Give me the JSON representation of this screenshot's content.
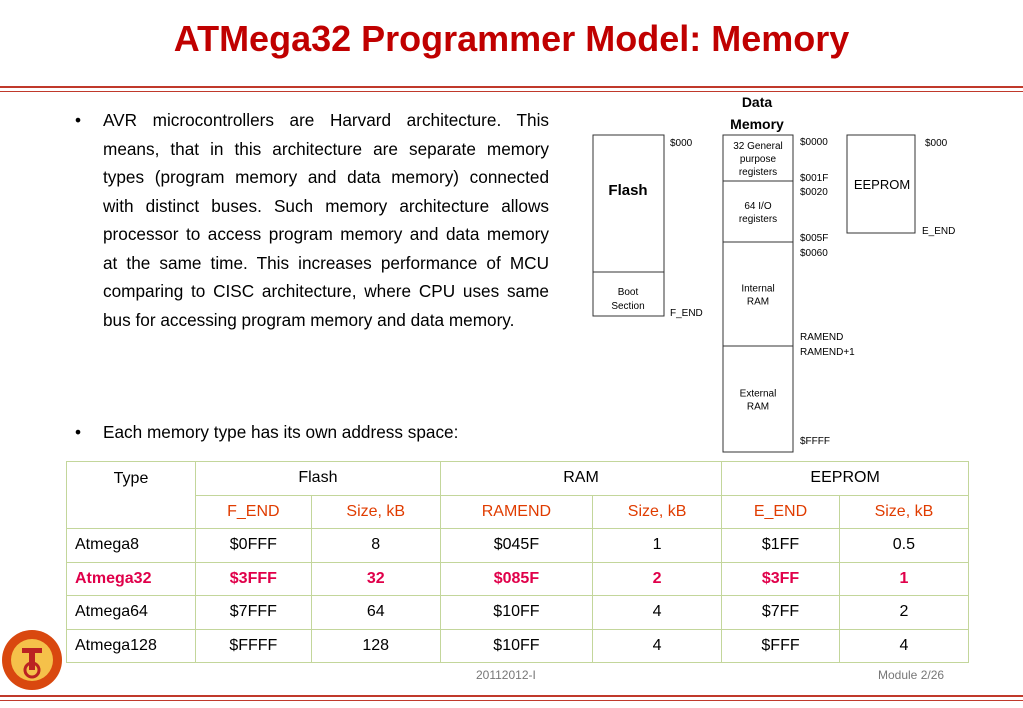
{
  "title": "ATMega32 Programmer Model: Memory",
  "bullets": [
    "AVR microcontrollers are Harvard architecture. This means, that in this architecture are separate memory types (program memory and data memory) connected with distinct buses. Such memory architecture allows processor to access program memory and data memory at the same time. This increases performance of MCU comparing to CISC architecture, where CPU uses same bus for accessing program memory and data memory.",
    "Each memory type has its own address space:"
  ],
  "diagram": {
    "data_memory_heading": [
      "Data",
      "Memory"
    ],
    "flash": {
      "label": "Flash",
      "boot": [
        "Boot",
        "Section"
      ],
      "start": "$000",
      "end": "F_END"
    },
    "data": {
      "blocks": [
        [
          "32 General",
          "purpose",
          "registers"
        ],
        [
          "64 I/O",
          "registers"
        ],
        [
          "Internal",
          "RAM"
        ],
        [
          "External",
          "RAM"
        ]
      ],
      "addresses": [
        "$0000",
        "$001F",
        "$0020",
        "$005F",
        "$0060",
        "RAMEND",
        "RAMEND+1",
        "$FFFF"
      ]
    },
    "eeprom": {
      "label": "EEPROM",
      "start": "$000",
      "end": "E_END"
    }
  },
  "table": {
    "header": [
      "Type",
      "Flash",
      "RAM",
      "EEPROM"
    ],
    "subheader": [
      "F_END",
      "Size, kB",
      "RAMEND",
      "Size, kB",
      "E_END",
      "Size, kB"
    ],
    "rows": [
      [
        "Atmega8",
        "$0FFF",
        "8",
        "$045F",
        "1",
        "$1FF",
        "0.5"
      ],
      [
        "Atmega32",
        "$3FFF",
        "32",
        "$085F",
        "2",
        "$3FF",
        "1"
      ],
      [
        "Atmega64",
        "$7FFF",
        "64",
        "$10FF",
        "4",
        "$7FF",
        "2"
      ],
      [
        "Atmega128",
        "$FFFF",
        "128",
        "$10FF",
        "4",
        "$FFF",
        "4"
      ]
    ],
    "highlight_row": 1
  },
  "footer": {
    "center": "20112012-I",
    "right": "Module 2/26"
  }
}
